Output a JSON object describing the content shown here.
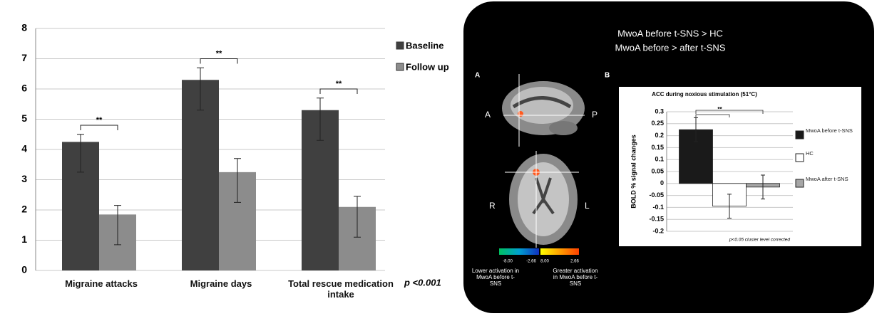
{
  "chart_data": [
    {
      "type": "bar",
      "categories": [
        "Migraine attacks",
        "Migraine days",
        "Total rescue medication intake"
      ],
      "series": [
        {
          "name": "Baseline",
          "color": "#404040",
          "values": [
            4.25,
            6.3,
            5.3
          ],
          "error_plus": [
            0.25,
            0.4,
            0.4
          ],
          "error_minus": [
            1.0,
            1.0,
            1.0
          ]
        },
        {
          "name": "Follow up",
          "color": "#8c8c8c",
          "values": [
            1.85,
            3.25,
            2.1
          ],
          "error_plus": [
            0.3,
            0.45,
            0.35
          ],
          "error_minus": [
            1.0,
            1.0,
            1.0
          ]
        }
      ],
      "annotations": [
        "**",
        "**",
        "**"
      ],
      "note": "p <0.001",
      "ylim": [
        0,
        8
      ],
      "yticks": [
        0,
        1,
        2,
        3,
        4,
        5,
        6,
        7,
        8
      ],
      "grid": true,
      "legend": "right"
    },
    {
      "type": "bar",
      "title": "ACC during noxious stimulation (51°C)",
      "ylabel": "BOLD % signal changes",
      "series": [
        {
          "name": "MwoA before t-SNS",
          "color": "#1a1a1a",
          "values": [
            0.225
          ],
          "errors": [
            0.05
          ]
        },
        {
          "name": "HC",
          "color": "#ffffff",
          "values": [
            -0.095
          ],
          "errors": [
            0.05
          ]
        },
        {
          "name": "MwoA after t-SNS",
          "color": "#a6a6a6",
          "values": [
            -0.015
          ],
          "errors": [
            0.05
          ]
        }
      ],
      "annotations": [
        "**"
      ],
      "note": "p<0.05 cluster level corrected",
      "ylim": [
        -0.2,
        0.3
      ],
      "yticks": [
        -0.2,
        -0.15,
        -0.1,
        -0.05,
        0,
        0.05,
        0.1,
        0.15,
        0.2,
        0.25,
        0.3
      ],
      "grid": true,
      "legend": "right"
    }
  ],
  "brain_panel": {
    "title": [
      "MwoA before t-SNS > HC",
      "MwoA before > after t-SNS"
    ],
    "panel_labels": [
      "A",
      "B"
    ],
    "orientation": [
      "A",
      "P",
      "R",
      "L"
    ],
    "colorbar_labels": [
      "-8.00",
      "-2.66",
      "8.00",
      "2.66"
    ],
    "captions": [
      "Lower activation in MwoA before t-SNS",
      "Greater activation in MwoA before t-SNS"
    ]
  }
}
